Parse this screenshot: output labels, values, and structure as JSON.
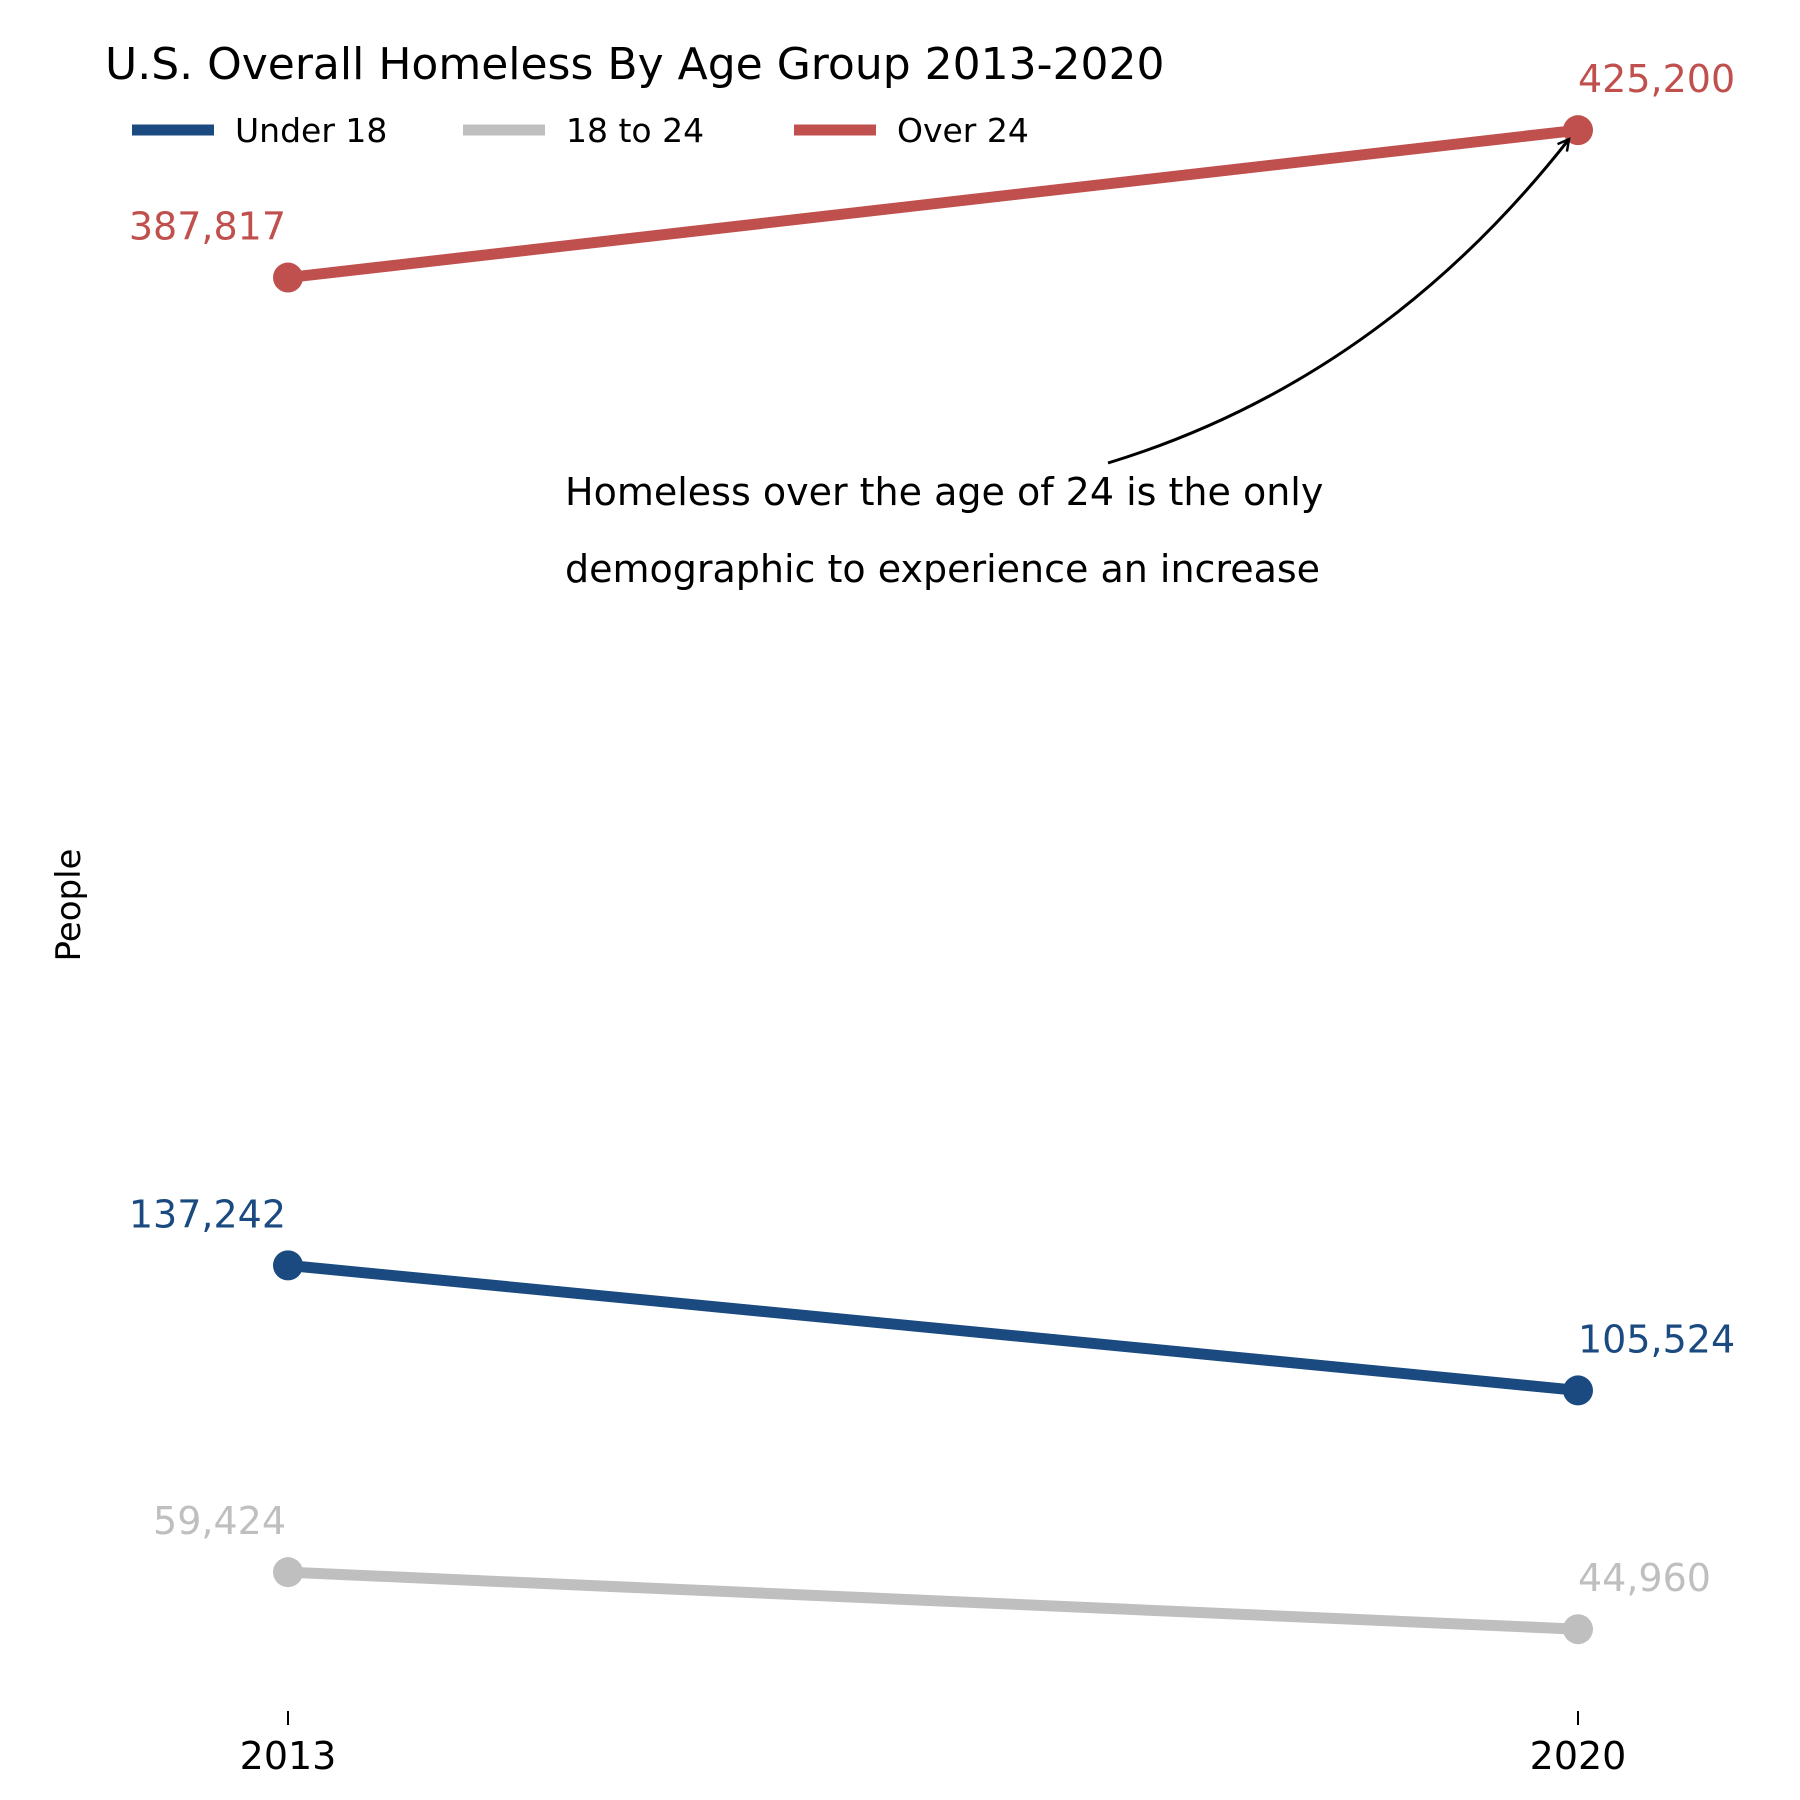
{
  "chart_data": {
    "type": "line",
    "title": "U.S. Overall Homeless By Age Group 2013-2020",
    "xlabel": "",
    "ylabel": "People",
    "categories": [
      "2013",
      "2020"
    ],
    "series": [
      {
        "name": "Under 18",
        "color": "#1a4a80",
        "values": [
          137242,
          105524
        ],
        "labels": [
          "137,242",
          "105,524"
        ]
      },
      {
        "name": "18 to 24",
        "color": "#bfbfbf",
        "values": [
          59424,
          44960
        ],
        "labels": [
          "59,424",
          "44,960"
        ]
      },
      {
        "name": "Over 24",
        "color": "#c0504d",
        "values": [
          387817,
          425200
        ],
        "labels": [
          "387,817",
          "425,200"
        ]
      }
    ],
    "ylim": [
      27000,
      443000
    ],
    "grid": false,
    "legend": "top-left, horizontal",
    "annotation": {
      "lines": [
        "Homeless over the age of 24 is the only",
        "demographic to experience an increase"
      ],
      "series": "Over 24",
      "target_category": "2020"
    }
  }
}
